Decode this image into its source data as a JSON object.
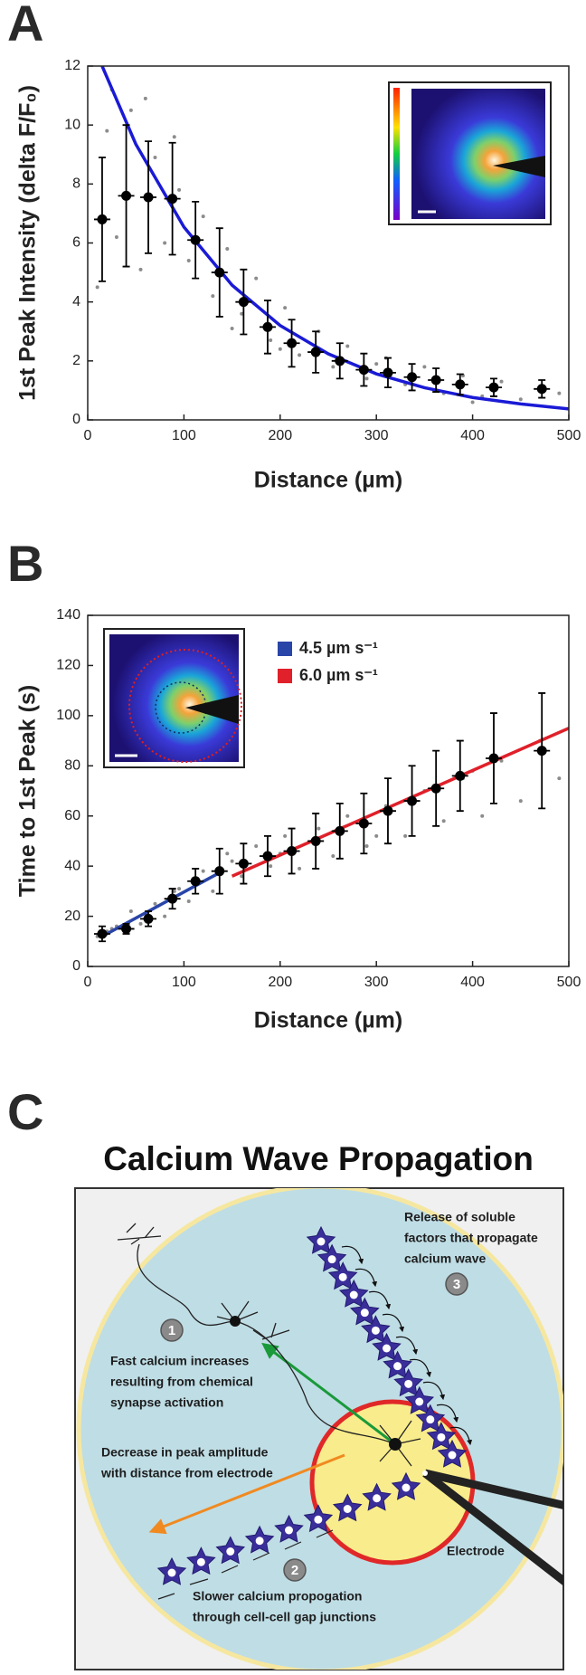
{
  "chart_data": [
    {
      "type": "scatter",
      "panel": "A",
      "xlabel": "Distance (µm)",
      "ylabel": "1st Peak Intensity (delta F/F₀)",
      "xlim": [
        0,
        500
      ],
      "ylim": [
        0,
        12
      ],
      "xticks": [
        0,
        100,
        200,
        300,
        400,
        500
      ],
      "yticks": [
        0,
        2,
        4,
        6,
        8,
        10,
        12
      ],
      "series": [
        {
          "kind": "points",
          "color": "#8c8c8c",
          "x": [
            10,
            20,
            30,
            45,
            55,
            70,
            80,
            95,
            105,
            120,
            130,
            145,
            160,
            175,
            190,
            205,
            220,
            240,
            255,
            270,
            290,
            310,
            330,
            350,
            370,
            390,
            410,
            430,
            450,
            470,
            490,
            25,
            60,
            90,
            150,
            200,
            300,
            400
          ],
          "values": [
            4.5,
            9.8,
            6.2,
            10.5,
            5.1,
            8.9,
            6.0,
            7.8,
            5.4,
            6.9,
            4.2,
            5.8,
            3.6,
            4.8,
            2.7,
            3.8,
            2.2,
            3.0,
            1.8,
            2.5,
            1.4,
            2.1,
            1.2,
            1.8,
            0.9,
            1.5,
            0.8,
            1.3,
            0.7,
            1.1,
            0.9,
            11.2,
            10.9,
            9.6,
            3.1,
            2.4,
            1.9,
            0.6
          ]
        },
        {
          "kind": "errorbar",
          "color": "#000000",
          "x": [
            15,
            40,
            63,
            88,
            112,
            137,
            162,
            187,
            212,
            237,
            262,
            287,
            312,
            337,
            362,
            387,
            422,
            472
          ],
          "values": [
            6.8,
            7.6,
            7.55,
            7.5,
            6.1,
            5.0,
            4.0,
            3.15,
            2.6,
            2.3,
            2.0,
            1.7,
            1.6,
            1.45,
            1.35,
            1.2,
            1.1,
            1.05
          ],
          "errors": [
            2.1,
            2.4,
            1.9,
            1.9,
            1.3,
            1.5,
            1.1,
            0.9,
            0.8,
            0.7,
            0.6,
            0.55,
            0.5,
            0.45,
            0.4,
            0.35,
            0.3,
            0.3
          ]
        },
        {
          "kind": "line",
          "color": "#1a1ad6",
          "x": [
            15,
            50,
            100,
            150,
            200,
            250,
            300,
            350,
            400,
            450,
            500
          ],
          "values": [
            12,
            9.35,
            6.54,
            4.57,
            3.2,
            2.24,
            1.56,
            1.09,
            0.76,
            0.54,
            0.37
          ]
        }
      ]
    },
    {
      "type": "scatter",
      "panel": "B",
      "xlabel": "Distance (µm)",
      "ylabel": "Time to 1st Peak (s)",
      "xlim": [
        0,
        500
      ],
      "ylim": [
        0,
        140
      ],
      "xticks": [
        0,
        100,
        200,
        300,
        400,
        500
      ],
      "yticks": [
        0,
        20,
        40,
        60,
        80,
        100,
        120,
        140
      ],
      "legend": "upper left",
      "series": [
        {
          "kind": "points",
          "color": "#8c8c8c",
          "x": [
            10,
            20,
            30,
            45,
            55,
            70,
            80,
            95,
            105,
            120,
            130,
            145,
            160,
            175,
            190,
            205,
            220,
            240,
            255,
            270,
            290,
            310,
            330,
            350,
            370,
            390,
            410,
            430,
            450,
            470,
            490,
            25,
            60,
            90,
            150,
            200,
            300,
            400
          ],
          "values": [
            12,
            14,
            16,
            22,
            17,
            25,
            20,
            31,
            26,
            38,
            30,
            45,
            36,
            48,
            40,
            52,
            39,
            55,
            44,
            60,
            48,
            64,
            52,
            70,
            58,
            75,
            60,
            82,
            66,
            90,
            75,
            15,
            21,
            30,
            42,
            45,
            52,
            78
          ]
        },
        {
          "kind": "errorbar",
          "color": "#000000",
          "x": [
            15,
            40,
            63,
            88,
            112,
            137,
            162,
            187,
            212,
            237,
            262,
            287,
            312,
            337,
            362,
            387,
            422,
            472
          ],
          "values": [
            13,
            15,
            19,
            27,
            34,
            38,
            41,
            44,
            46,
            50,
            54,
            57,
            62,
            66,
            71,
            76,
            83,
            86
          ],
          "errors": [
            3,
            2,
            3,
            4,
            5,
            9,
            8,
            8,
            9,
            11,
            11,
            12,
            13,
            14,
            15,
            14,
            18,
            23
          ]
        },
        {
          "kind": "line",
          "name": "4.5 µm s⁻¹",
          "color": "#2a45a8",
          "x": [
            15,
            140
          ],
          "values": [
            12,
            38
          ]
        },
        {
          "kind": "line",
          "name": "6.0 µm s⁻¹",
          "color": "#e0202a",
          "x": [
            150,
            500
          ],
          "values": [
            36,
            95
          ]
        }
      ]
    }
  ],
  "diagram": {
    "panel": "C",
    "title": "Calcium Wave Propagation",
    "steps": [
      "1",
      "2",
      "3"
    ],
    "notes": [
      [
        "Release of soluble",
        "factors that propagate",
        "calcium wave"
      ],
      [
        "Fast calcium increases",
        "resulting from chemical",
        "synapse activation"
      ],
      [
        "Decrease in peak amplitude",
        "with distance from electrode"
      ],
      [
        "Slower calcium propogation",
        "through cell-cell gap junctions"
      ],
      [
        "Electrode"
      ]
    ]
  }
}
